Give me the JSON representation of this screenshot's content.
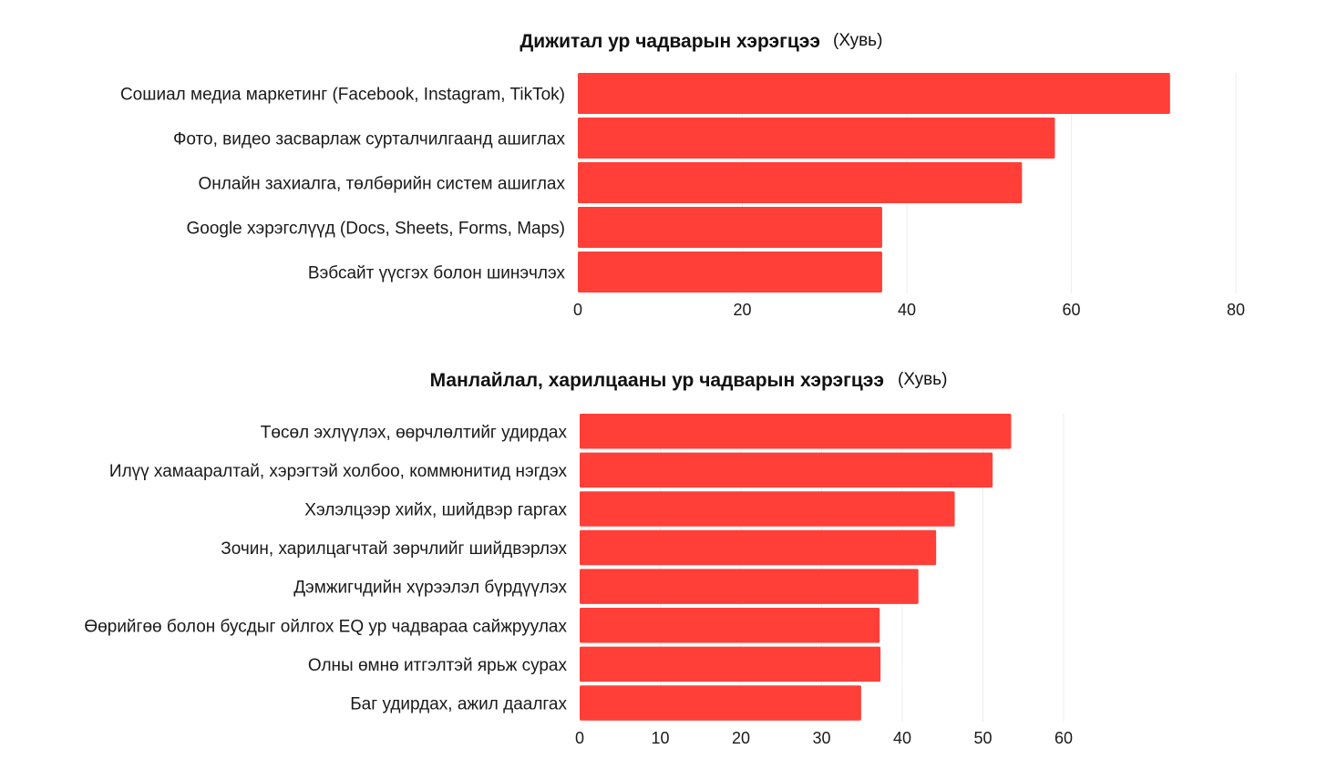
{
  "colors": {
    "bar": "#ff3f38",
    "grid": "#ececec",
    "text": "#1a1a1a"
  },
  "chart_data": [
    {
      "type": "bar",
      "orientation": "horizontal",
      "title": "Дижитал ур чадварын хэрэгцээ",
      "unit": "(Хувь)",
      "categories": [
        "Сошиал медиа маркетинг (Facebook, Instagram, TikTok)",
        "Фото, видео засварлаж сурталчилгаанд ашиглах",
        "Онлайн захиалга, төлбөрийн систем ашиглах",
        "Google хэрэгслүүд (Docs, Sheets, Forms, Maps)",
        "Вэбсайт үүсгэх болон шинэчлэх"
      ],
      "values": [
        72,
        58,
        54,
        37,
        37
      ],
      "xlim": [
        0,
        80
      ],
      "xticks": [
        0,
        20,
        40,
        60,
        80
      ],
      "grid": true
    },
    {
      "type": "bar",
      "orientation": "horizontal",
      "title": "Манлайлал, харилцааны ур чадварын хэрэгцээ",
      "unit": "(Хувь)",
      "categories": [
        "Төсөл эхлүүлэх, өөрчлөлтийг удирдах",
        "Илүү хамааралтай, хэрэгтэй холбоо, коммюнитид нэгдэх",
        "Хэлэлцээр хийх, шийдвэр гаргах",
        "Зочин, харилцагчтай зөрчлийг шийдвэрлэх",
        "Дэмжигчдийн хүрээлэл бүрдүүлэх",
        "Өөрийгөө болон бусдыг ойлгох EQ ур чадвараа сайжруулах",
        "Олны өмнө итгэлтэй ярьж сурах",
        "Баг удирдах, ажил даалгах"
      ],
      "values": [
        53.5,
        51.2,
        46.5,
        44.2,
        42,
        37.2,
        37.3,
        34.9
      ],
      "xlim": [
        0,
        60
      ],
      "xticks": [
        0,
        10,
        20,
        30,
        40,
        50,
        60
      ],
      "grid": true
    }
  ]
}
